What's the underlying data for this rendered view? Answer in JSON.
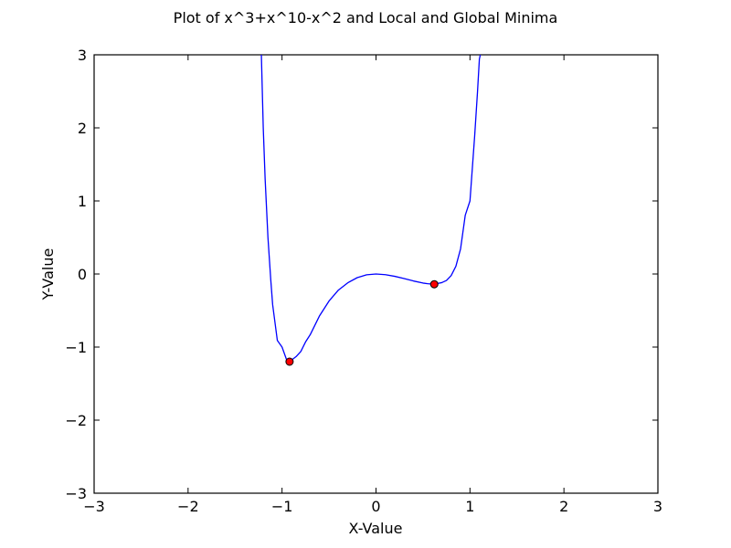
{
  "chart_data": {
    "type": "line",
    "title": "Plot of x^3+x^10-x^2 and Local and Global Minima",
    "xlabel": "X-Value",
    "ylabel": "Y-Value",
    "xlim": [
      -3,
      3
    ],
    "ylim": [
      -3,
      3
    ],
    "xticks": [
      -3,
      -2,
      -1,
      0,
      1,
      2,
      3
    ],
    "yticks": [
      -3,
      -2,
      -1,
      0,
      1,
      2,
      3
    ],
    "xtick_labels": [
      "−3",
      "−2",
      "−1",
      "0",
      "1",
      "2",
      "3"
    ],
    "ytick_labels": [
      "−3",
      "−2",
      "−1",
      "0",
      "1",
      "2",
      "3"
    ],
    "grid": false,
    "series": [
      {
        "function": "x^3+x^10-x^2",
        "color": "#0000ff",
        "x": [
          -1.22,
          -1.2,
          -1.18,
          -1.15,
          -1.12,
          -1.1,
          -1.05,
          -1.0,
          -0.95,
          -0.92,
          -0.9,
          -0.85,
          -0.8,
          -0.75,
          -0.7,
          -0.6,
          -0.5,
          -0.4,
          -0.3,
          -0.2,
          -0.1,
          0.0,
          0.1,
          0.2,
          0.3,
          0.4,
          0.5,
          0.55,
          0.6,
          0.62,
          0.65,
          0.7,
          0.75,
          0.8,
          0.85,
          0.9,
          0.95,
          1.0,
          1.05,
          1.08,
          1.1,
          1.11
        ],
        "y": [
          3.0,
          2.0,
          1.3,
          0.5,
          -0.08,
          -0.42,
          -0.91,
          -1.0,
          -1.18,
          -1.19,
          -1.18,
          -1.13,
          -1.06,
          -0.93,
          -0.83,
          -0.57,
          -0.37,
          -0.22,
          -0.12,
          -0.05,
          -0.011,
          0.0,
          -0.009,
          -0.032,
          -0.063,
          -0.096,
          -0.124,
          -0.133,
          -0.138,
          -0.138,
          -0.131,
          -0.118,
          -0.088,
          -0.021,
          0.106,
          0.345,
          0.806,
          1.0,
          1.89,
          2.49,
          2.94,
          3.0
        ]
      }
    ],
    "minima": {
      "color": "#ff0000",
      "points": [
        {
          "x": -0.92,
          "y": -1.2
        },
        {
          "x": 0.62,
          "y": -0.14
        }
      ]
    }
  }
}
